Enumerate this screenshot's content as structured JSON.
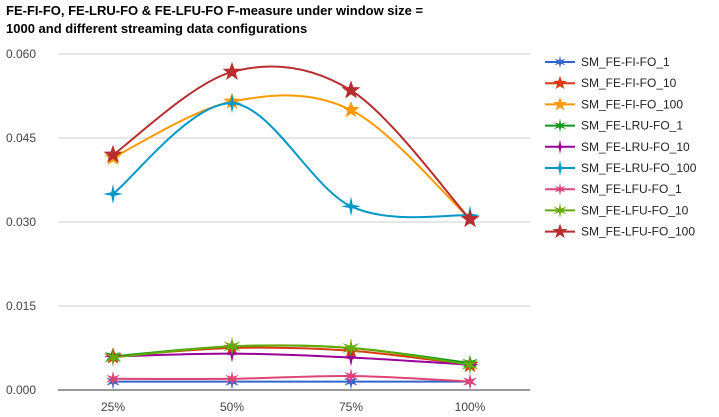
{
  "chart_data": {
    "type": "line",
    "title": "FE-FI-FO, FE-LRU-FO & FE-LFU-FO F-measure under window size = 1000 and different streaming data configurations",
    "xlabel": "",
    "ylabel": "",
    "categories": [
      "25%",
      "50%",
      "75%",
      "100%"
    ],
    "yticks": [
      "0.000",
      "0.015",
      "0.030",
      "0.045",
      "0.060"
    ],
    "ylim": [
      0,
      0.06
    ],
    "grid": "horizontal",
    "legend_position": "right",
    "series": [
      {
        "name": "SM_FE-FI-FO_1",
        "color": "#3366cc",
        "values": [
          0.0015,
          0.0015,
          0.0015,
          0.0015
        ]
      },
      {
        "name": "SM_FE-FI-FO_10",
        "color": "#dc3912",
        "values": [
          0.006,
          0.0075,
          0.007,
          0.0045
        ]
      },
      {
        "name": "SM_FE-FI-FO_100",
        "color": "#ff9900",
        "values": [
          0.0415,
          0.0515,
          0.05,
          0.0305
        ]
      },
      {
        "name": "SM_FE-LRU-FO_1",
        "color": "#109618",
        "values": [
          0.006,
          0.0078,
          0.0075,
          0.0048
        ]
      },
      {
        "name": "SM_FE-LRU-FO_10",
        "color": "#990099",
        "values": [
          0.006,
          0.0065,
          0.0058,
          0.0045
        ]
      },
      {
        "name": "SM_FE-LRU-FO_100",
        "color": "#0099c6",
        "values": [
          0.035,
          0.0512,
          0.0328,
          0.0312
        ]
      },
      {
        "name": "SM_FE-LFU-FO_1",
        "color": "#dd4477",
        "values": [
          0.002,
          0.002,
          0.0025,
          0.0015
        ]
      },
      {
        "name": "SM_FE-LFU-FO_10",
        "color": "#66aa00",
        "values": [
          0.0058,
          0.0078,
          0.0075,
          0.0045
        ]
      },
      {
        "name": "SM_FE-LFU-FO_100",
        "color": "#b82e2e",
        "values": [
          0.042,
          0.0568,
          0.0535,
          0.0305
        ]
      }
    ]
  }
}
